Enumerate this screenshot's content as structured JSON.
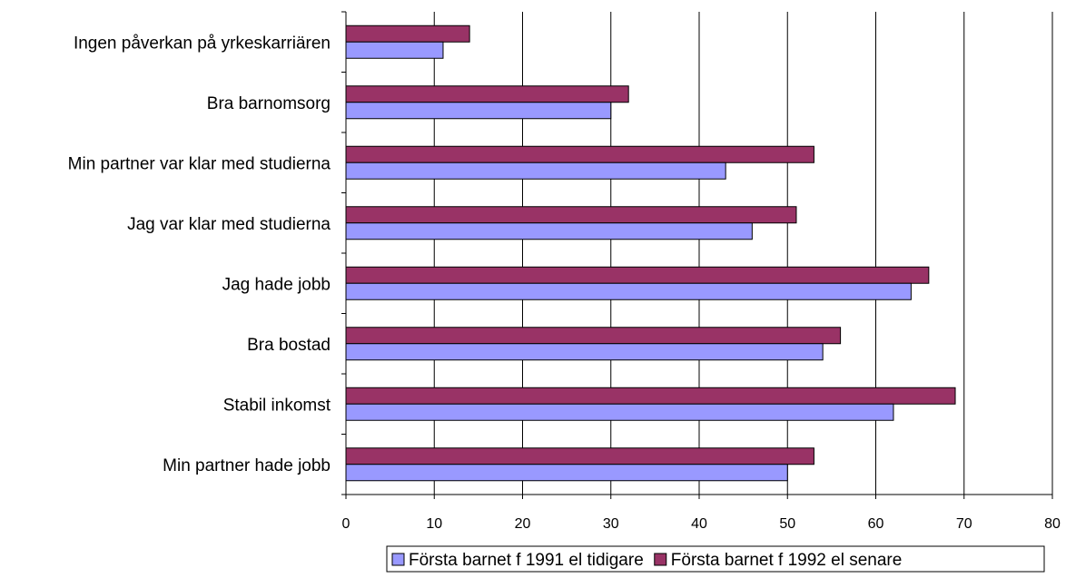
{
  "chart_data": {
    "type": "bar",
    "orientation": "horizontal",
    "title": "",
    "xlabel": "",
    "ylabel": "",
    "categories": [
      "Ingen påverkan på yrkeskarriären",
      "Bra barnomsorg",
      "Min partner var klar med studierna",
      "Jag var klar med studierna",
      "Jag hade jobb",
      "Bra bostad",
      "Stabil inkomst",
      "Min partner hade jobb"
    ],
    "series": [
      {
        "name": "Första barnet f 1991 el tidigare",
        "color": "#9999FF",
        "values": [
          11,
          30,
          43,
          46,
          64,
          54,
          62,
          50
        ]
      },
      {
        "name": "Första barnet f 1992 el senare",
        "color": "#993366",
        "values": [
          14,
          32,
          53,
          51,
          66,
          56,
          69,
          53
        ]
      }
    ],
    "xlim": [
      0,
      80
    ],
    "xticks": [
      "0",
      "10",
      "20",
      "30",
      "40",
      "50",
      "60",
      "70",
      "80"
    ],
    "grid": true,
    "legend_position": "bottom"
  }
}
